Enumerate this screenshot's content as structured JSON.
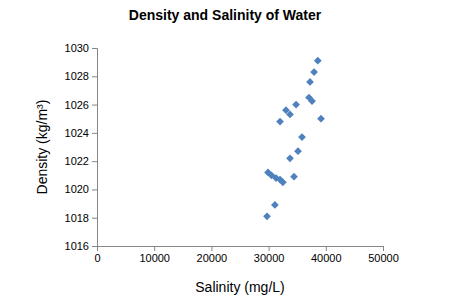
{
  "chart_data": {
    "type": "scatter",
    "title": "Density and Salinity of Water",
    "x_label": "Salinity (mg/L)",
    "y_label": "Density (kg/m³)",
    "x": [
      38600,
      37950,
      37240,
      37060,
      37590,
      34800,
      33040,
      33740,
      32000,
      39160,
      35840,
      35140,
      33740,
      29900,
      30500,
      31300,
      32000,
      32500,
      34440,
      31100,
      29720
    ],
    "values": [
      1029.1,
      1028.3,
      1027.6,
      1026.5,
      1026.25,
      1026.0,
      1025.6,
      1025.3,
      1024.8,
      1025.0,
      1023.7,
      1022.7,
      1022.2,
      1021.2,
      1021.0,
      1020.8,
      1020.7,
      1020.5,
      1020.9,
      1018.9,
      1018.1
    ],
    "color": "#4f81bd",
    "marker": "diamond",
    "xlim": [
      0,
      50000
    ],
    "xticks": [
      0,
      10000,
      20000,
      30000,
      40000,
      50000
    ],
    "ylim": [
      1016,
      1030
    ],
    "yticks": [
      1016,
      1018,
      1020,
      1022,
      1024,
      1026,
      1028,
      1030
    ],
    "grid": false
  }
}
